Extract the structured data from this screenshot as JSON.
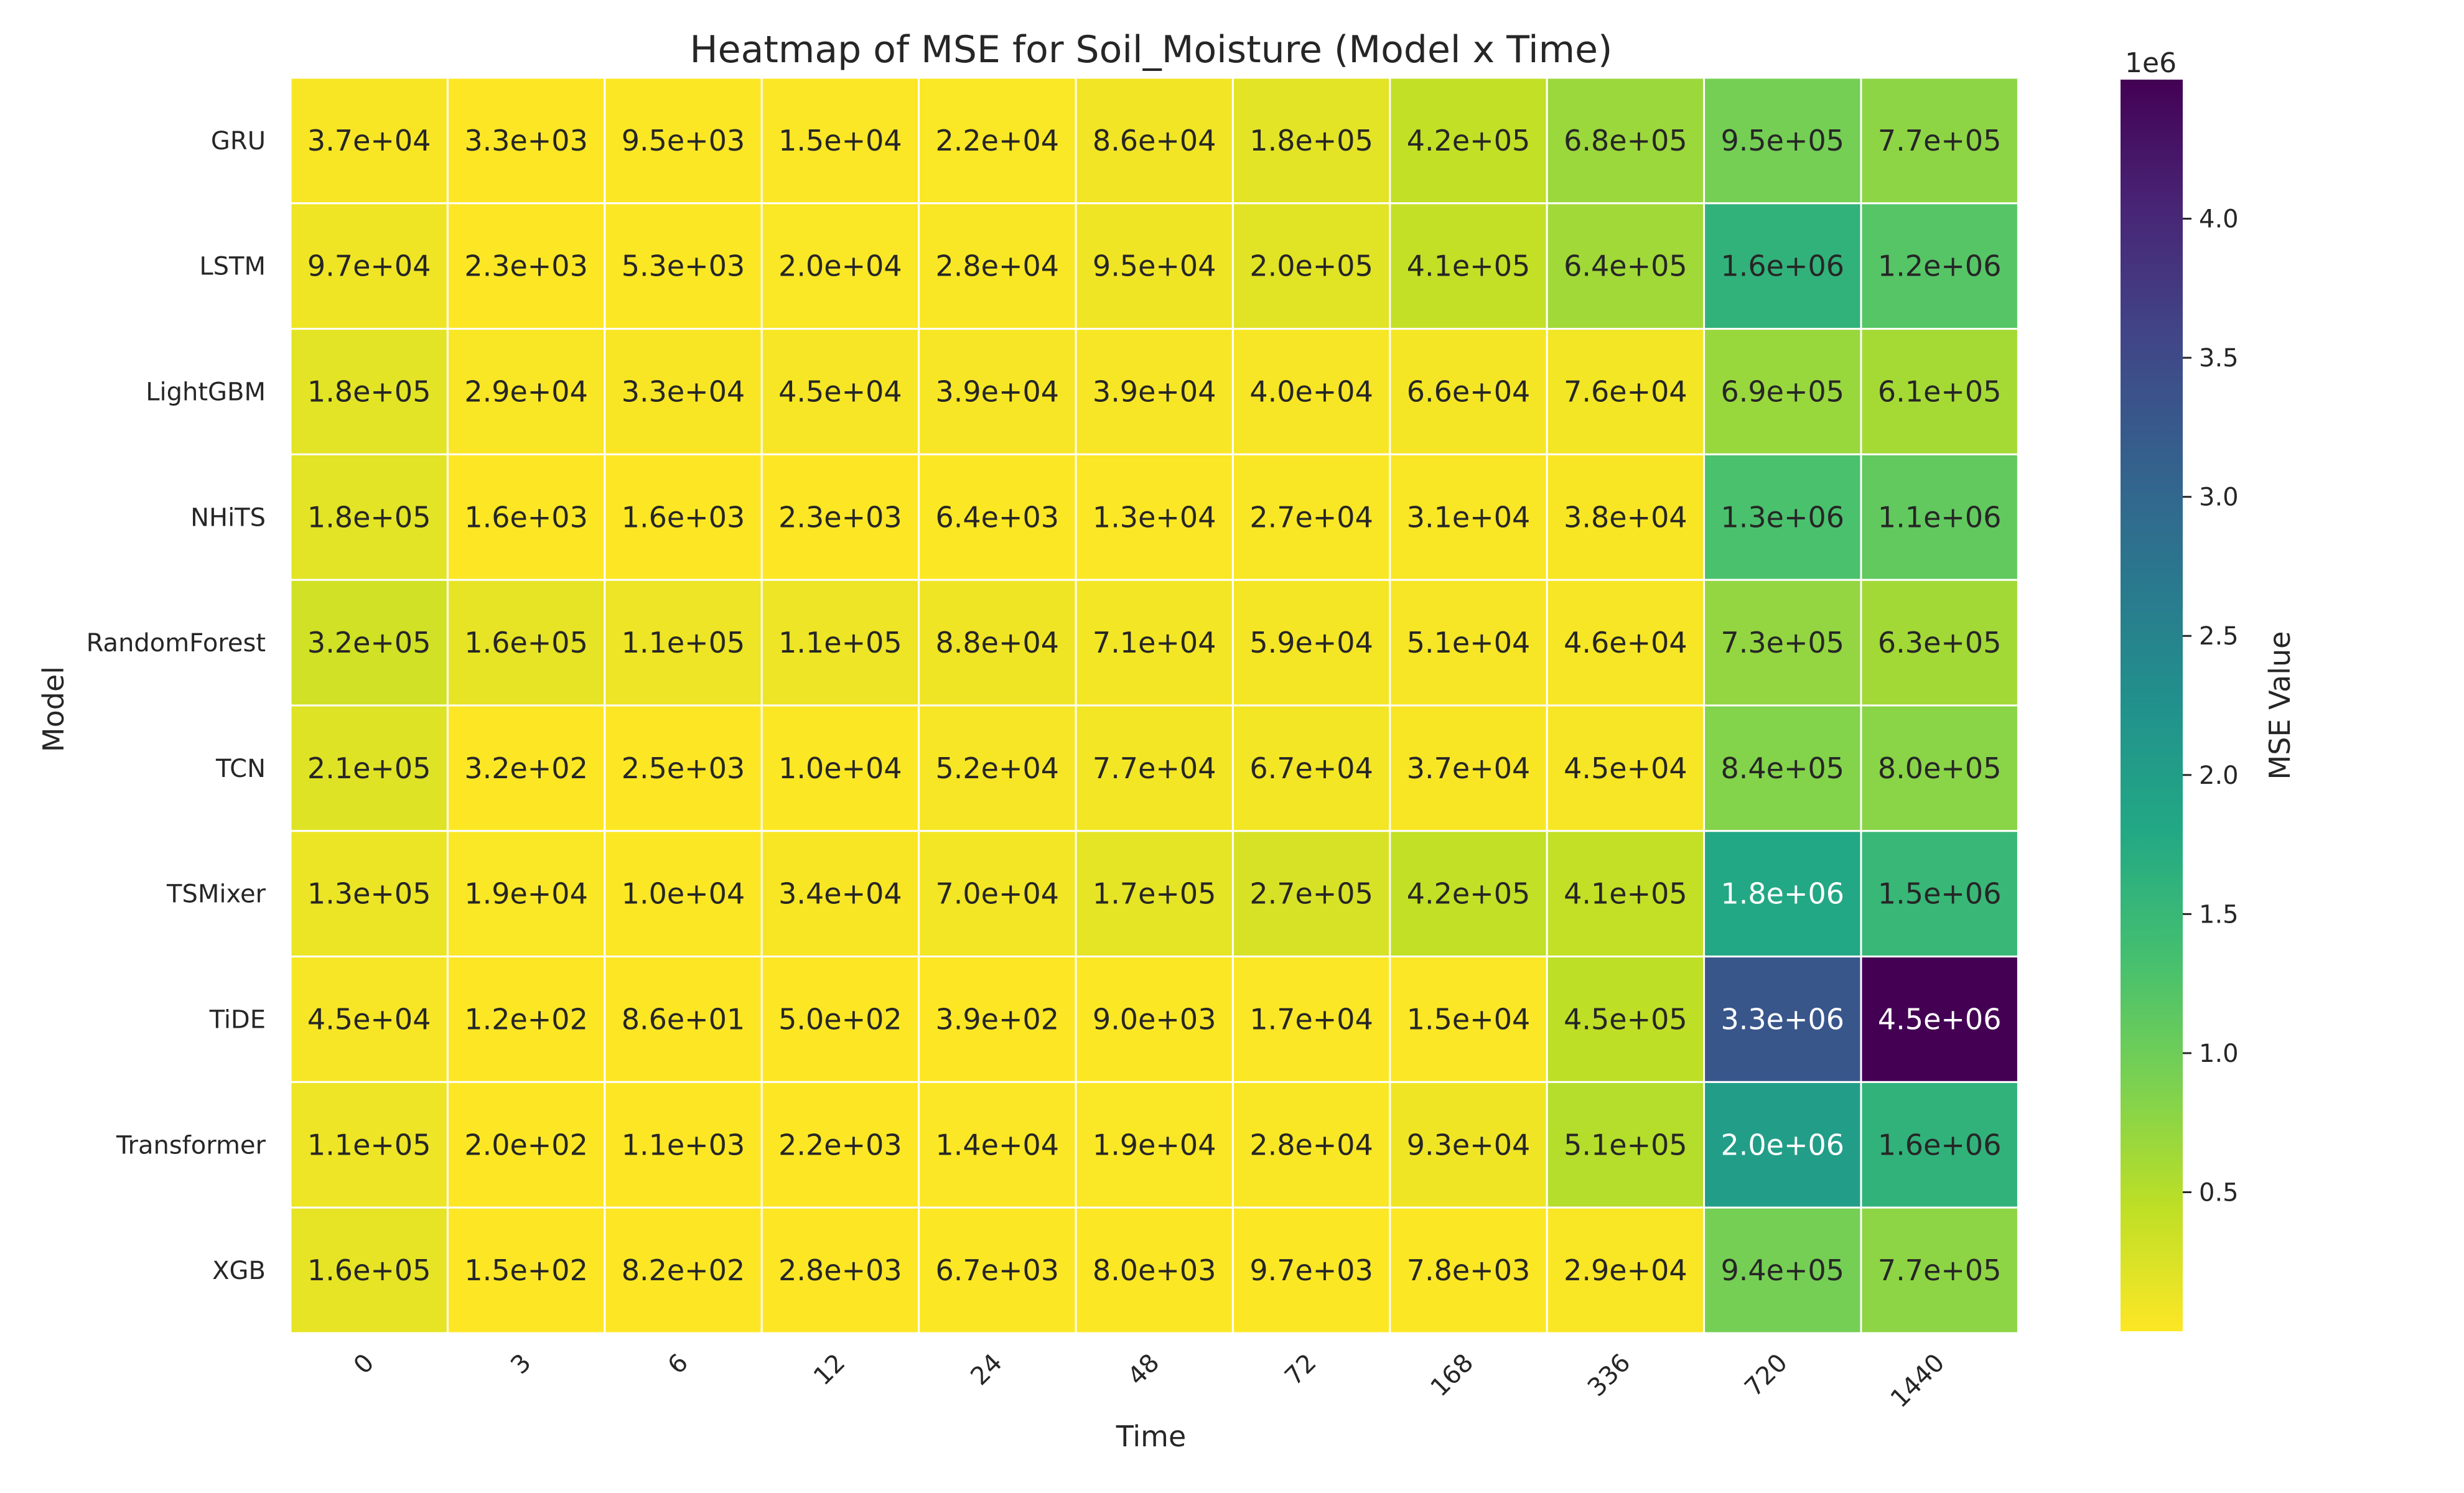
{
  "chart_data": {
    "type": "heatmap",
    "title": "Heatmap of MSE for Soil_Moisture (Model x Time)",
    "xlabel": "Time",
    "ylabel": "Model",
    "x_categories": [
      "0",
      "3",
      "6",
      "12",
      "24",
      "48",
      "72",
      "168",
      "336",
      "720",
      "1440"
    ],
    "y_categories": [
      "GRU",
      "LSTM",
      "LightGBM",
      "NHiTS",
      "RandomForest",
      "TCN",
      "TSMixer",
      "TiDE",
      "Transformer",
      "XGB"
    ],
    "values": [
      [
        37000,
        3300,
        9500,
        15000,
        22000,
        86000,
        180000,
        420000,
        680000,
        950000,
        770000
      ],
      [
        97000,
        2300,
        5300,
        20000,
        28000,
        95000,
        200000,
        410000,
        640000,
        1600000,
        1200000
      ],
      [
        180000,
        29000,
        33000,
        45000,
        39000,
        39000,
        40000,
        66000,
        76000,
        690000,
        610000
      ],
      [
        180000,
        1600,
        1600,
        2300,
        6400,
        13000,
        27000,
        31000,
        38000,
        1300000,
        1100000
      ],
      [
        320000,
        160000,
        110000,
        110000,
        88000,
        71000,
        59000,
        51000,
        46000,
        730000,
        630000
      ],
      [
        210000,
        320,
        2500,
        10000,
        52000,
        77000,
        67000,
        37000,
        45000,
        840000,
        800000
      ],
      [
        130000,
        19000,
        10000,
        34000,
        70000,
        170000,
        270000,
        420000,
        410000,
        1800000,
        1500000
      ],
      [
        45000,
        120,
        86,
        500,
        390,
        9000,
        17000,
        15000,
        450000,
        3300000,
        4500000
      ],
      [
        110000,
        200,
        1100,
        2200,
        14000,
        19000,
        28000,
        93000,
        510000,
        2000000,
        1600000
      ],
      [
        160000,
        150,
        820,
        2800,
        6700,
        8000,
        9700,
        7800,
        29000,
        940000,
        770000
      ]
    ],
    "labels": [
      [
        "3.7e+04",
        "3.3e+03",
        "9.5e+03",
        "1.5e+04",
        "2.2e+04",
        "8.6e+04",
        "1.8e+05",
        "4.2e+05",
        "6.8e+05",
        "9.5e+05",
        "7.7e+05"
      ],
      [
        "9.7e+04",
        "2.3e+03",
        "5.3e+03",
        "2.0e+04",
        "2.8e+04",
        "9.5e+04",
        "2.0e+05",
        "4.1e+05",
        "6.4e+05",
        "1.6e+06",
        "1.2e+06"
      ],
      [
        "1.8e+05",
        "2.9e+04",
        "3.3e+04",
        "4.5e+04",
        "3.9e+04",
        "3.9e+04",
        "4.0e+04",
        "6.6e+04",
        "7.6e+04",
        "6.9e+05",
        "6.1e+05"
      ],
      [
        "1.8e+05",
        "1.6e+03",
        "1.6e+03",
        "2.3e+03",
        "6.4e+03",
        "1.3e+04",
        "2.7e+04",
        "3.1e+04",
        "3.8e+04",
        "1.3e+06",
        "1.1e+06"
      ],
      [
        "3.2e+05",
        "1.6e+05",
        "1.1e+05",
        "1.1e+05",
        "8.8e+04",
        "7.1e+04",
        "5.9e+04",
        "5.1e+04",
        "4.6e+04",
        "7.3e+05",
        "6.3e+05"
      ],
      [
        "2.1e+05",
        "3.2e+02",
        "2.5e+03",
        "1.0e+04",
        "5.2e+04",
        "7.7e+04",
        "6.7e+04",
        "3.7e+04",
        "4.5e+04",
        "8.4e+05",
        "8.0e+05"
      ],
      [
        "1.3e+05",
        "1.9e+04",
        "1.0e+04",
        "3.4e+04",
        "7.0e+04",
        "1.7e+05",
        "2.7e+05",
        "4.2e+05",
        "4.1e+05",
        "1.8e+06",
        "1.5e+06"
      ],
      [
        "4.5e+04",
        "1.2e+02",
        "8.6e+01",
        "5.0e+02",
        "3.9e+02",
        "9.0e+03",
        "1.7e+04",
        "1.5e+04",
        "4.5e+05",
        "3.3e+06",
        "4.5e+06"
      ],
      [
        "1.1e+05",
        "2.0e+02",
        "1.1e+03",
        "2.2e+03",
        "1.4e+04",
        "1.9e+04",
        "2.8e+04",
        "9.3e+04",
        "5.1e+05",
        "2.0e+06",
        "1.6e+06"
      ],
      [
        "1.6e+05",
        "1.5e+02",
        "8.2e+02",
        "2.8e+03",
        "6.7e+03",
        "8.0e+03",
        "9.7e+03",
        "7.8e+03",
        "2.9e+04",
        "9.4e+05",
        "7.7e+05"
      ]
    ],
    "colormap": "viridis_r",
    "vmin": 86,
    "vmax": 4500000,
    "colorbar": {
      "label": "MSE Value",
      "multiplier": "1e6",
      "ticks": [
        0.5,
        1.0,
        1.5,
        2.0,
        2.5,
        3.0,
        3.5,
        4.0
      ],
      "tick_labels": [
        "0.5",
        "1.0",
        "1.5",
        "2.0",
        "2.5",
        "3.0",
        "3.5",
        "4.0"
      ]
    },
    "grid": false,
    "legend": "colorbar-right"
  }
}
